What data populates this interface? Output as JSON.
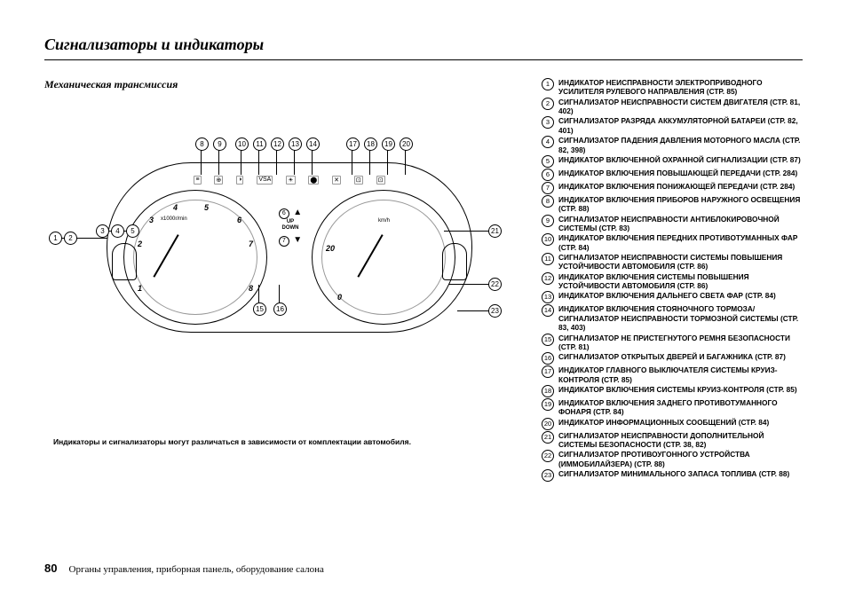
{
  "title": "Сигнализаторы и индикаторы",
  "sub_title": "Механическая трансмиссия",
  "units": {
    "left": "x1000r/min",
    "right": "km/h"
  },
  "center": {
    "top_num": "6",
    "up": "UP",
    "down": "DOWN",
    "bot_num": "7"
  },
  "left_ticks": [
    "1",
    "2",
    "3",
    "4",
    "5",
    "6",
    "7",
    "8"
  ],
  "right_ticks": [
    "0",
    "20",
    "40"
  ],
  "footnote": "Индикаторы и сигнализаторы могут различаться в зависимости от комплектации автомобиля.",
  "page_number": "80",
  "footer_text": "Органы управления, приборная панель, оборудование салона",
  "legend": [
    {
      "n": "1",
      "t": "ИНДИКАТОР НЕИСПРАВНОСТИ ЭЛЕКТРОПРИВОДНОГО УСИЛИТЕЛЯ РУЛЕВОГО НАПРАВЛЕНИЯ (СТР. 85)"
    },
    {
      "n": "2",
      "t": "СИГНАЛИЗАТОР НЕИСПРАВНОСТИ СИСТЕМ ДВИГАТЕЛЯ (СТР. 81, 402)"
    },
    {
      "n": "3",
      "t": "СИГНАЛИЗАТОР РАЗРЯДА АККУМУЛЯТОРНОЙ БАТАРЕИ (СТР. 82, 401)"
    },
    {
      "n": "4",
      "t": "СИГНАЛИЗАТОР ПАДЕНИЯ ДАВЛЕНИЯ МОТОРНОГО МАСЛА (СТР. 82, 398)"
    },
    {
      "n": "5",
      "t": "ИНДИКАТОР ВКЛЮЧЕННОЙ ОХРАННОЙ СИГНАЛИЗАЦИИ (СТР. 87)"
    },
    {
      "n": "6",
      "t": "ИНДИКАТОР ВКЛЮЧЕНИЯ ПОВЫШАЮЩЕЙ ПЕРЕДАЧИ (СТР. 284)"
    },
    {
      "n": "7",
      "t": "ИНДИКАТОР ВКЛЮЧЕНИЯ ПОНИЖАЮЩЕЙ ПЕРЕДАЧИ (СТР. 284)"
    },
    {
      "n": "8",
      "t": "ИНДИКАТОР ВКЛЮЧЕНИЯ ПРИБОРОВ НАРУЖНОГО ОСВЕЩЕНИЯ (СТР. 88)"
    },
    {
      "n": "9",
      "t": "СИГНАЛИЗАТОР НЕИСПРАВНОСТИ АНТИБЛОКИРОВОЧНОЙ СИСТЕМЫ (СТР. 83)"
    },
    {
      "n": "10",
      "t": "ИНДИКАТОР ВКЛЮЧЕНИЯ ПЕРЕДНИХ ПРОТИВОТУМАННЫХ ФАР (СТР. 84)"
    },
    {
      "n": "11",
      "t": "СИГНАЛИЗАТОР НЕИСПРАВНОСТИ СИСТЕМЫ ПОВЫШЕНИЯ УСТОЙЧИВОСТИ АВТОМОБИЛЯ (СТР. 86)"
    },
    {
      "n": "12",
      "t": "ИНДИКАТОР ВКЛЮЧЕНИЯ СИСТЕМЫ ПОВЫШЕНИЯ УСТОЙЧИВОСТИ АВТОМОБИЛЯ (СТР. 86)"
    },
    {
      "n": "13",
      "t": "ИНДИКАТОР ВКЛЮЧЕНИЯ ДАЛЬНЕГО СВЕТА ФАР (СТР. 84)"
    },
    {
      "n": "14",
      "t": "ИНДИКАТОР ВКЛЮЧЕНИЯ СТОЯНОЧНОГО ТОРМОЗА/ СИГНАЛИЗАТОР НЕИСПРАВНОСТИ ТОРМОЗНОЙ СИСТЕМЫ (СТР. 83, 403)"
    },
    {
      "n": "15",
      "t": "СИГНАЛИЗАТОР НЕ ПРИСТЕГНУТОГО РЕМНЯ БЕЗОПАСНОСТИ (СТР. 81)"
    },
    {
      "n": "16",
      "t": "СИГНАЛИЗАТОР ОТКРЫТЫХ ДВЕРЕЙ И БАГАЖНИКА (СТР. 87)"
    },
    {
      "n": "17",
      "t": "ИНДИКАТОР ГЛАВНОГО ВЫКЛЮЧАТЕЛЯ СИСТЕМЫ КРУИЗ-КОНТРОЛЯ (СТР. 85)"
    },
    {
      "n": "18",
      "t": "ИНДИКАТОР ВКЛЮЧЕНИЯ СИСТЕМЫ КРУИЗ-КОНТРОЛЯ (СТР. 85)"
    },
    {
      "n": "19",
      "t": "ИНДИКАТОР ВКЛЮЧЕНИЯ ЗАДНЕГО ПРОТИВОТУМАННОГО ФОНАРЯ (СТР. 84)"
    },
    {
      "n": "20",
      "t": "ИНДИКАТОР ИНФОРМАЦИОННЫХ СООБЩЕНИЙ (СТР. 84)"
    },
    {
      "n": "21",
      "t": "СИГНАЛИЗАТОР НЕИСПРАВНОСТИ ДОПОЛНИТЕЛЬНОЙ СИСТЕМЫ БЕЗОПАСНОСТИ (СТР. 38, 82)"
    },
    {
      "n": "22",
      "t": "СИГНАЛИЗАТОР ПРОТИВОУГОННОГО УСТРОЙСТВА (ИММОБИЛАЙЗЕРА) (СТР. 88)"
    },
    {
      "n": "23",
      "t": "СИГНАЛИЗАТОР МИНИМАЛЬНОГО ЗАПАСА ТОПЛИВА (СТР. 88)"
    }
  ],
  "callouts_top": [
    "8",
    "9",
    "10",
    "11",
    "12",
    "13",
    "14",
    "17",
    "18",
    "19",
    "20"
  ],
  "callouts_left": [
    "1",
    "2",
    "3",
    "4",
    "5"
  ],
  "callouts_bottom": [
    "15",
    "16"
  ],
  "callouts_right": [
    "21",
    "22",
    "23"
  ]
}
